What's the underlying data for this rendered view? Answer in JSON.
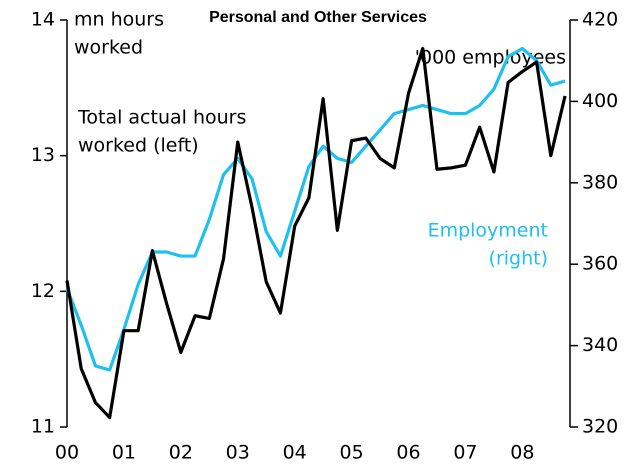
{
  "chart_data": {
    "type": "line",
    "title": "Personal and Other Services",
    "y_axis_label": [
      "mn hours",
      "worked"
    ],
    "y2_axis_label": "'000 employees",
    "annotations": [
      {
        "lines": [
          "Total actual hours",
          "worked (left)"
        ],
        "color": "#000000"
      },
      {
        "lines": [
          "Employment",
          "(right)"
        ],
        "color": "#1ec0f0"
      }
    ],
    "categories": [
      "00",
      null,
      null,
      null,
      "01",
      null,
      null,
      null,
      "02",
      null,
      null,
      null,
      "03",
      null,
      null,
      null,
      "04",
      null,
      null,
      null,
      "05",
      null,
      null,
      null,
      "06",
      null,
      null,
      null,
      "07",
      null,
      null,
      null,
      "08",
      null,
      null,
      null
    ],
    "series": [
      {
        "name": "Total actual hours worked (left)",
        "color": "#000000",
        "axis": "y",
        "values": [
          12.08,
          11.43,
          11.18,
          11.07,
          11.71,
          11.71,
          12.3,
          11.91,
          11.55,
          11.82,
          11.8,
          12.24,
          13.1,
          12.62,
          12.07,
          11.84,
          12.48,
          12.69,
          13.42,
          12.45,
          13.11,
          13.13,
          12.98,
          12.91,
          13.46,
          13.79,
          12.9,
          12.91,
          12.93,
          13.21,
          12.88,
          13.54,
          13.62,
          13.69,
          13.0,
          13.44
        ]
      },
      {
        "name": "Employment (right)",
        "color": "#1ec0f0",
        "axis": "y2",
        "values": [
          354,
          345,
          335,
          334,
          344,
          355,
          363,
          363,
          362,
          362,
          371,
          382,
          386,
          381,
          368,
          362,
          373,
          384,
          389,
          386,
          385,
          389,
          393,
          397,
          398,
          399,
          398,
          397,
          397,
          399,
          403,
          411,
          413,
          410,
          404,
          405
        ]
      }
    ],
    "ylim": [
      11,
      14
    ],
    "yticks": [
      11,
      12,
      13,
      14
    ],
    "y2lim": [
      320,
      420
    ],
    "y2ticks": [
      320,
      340,
      360,
      380,
      400,
      420
    ]
  }
}
